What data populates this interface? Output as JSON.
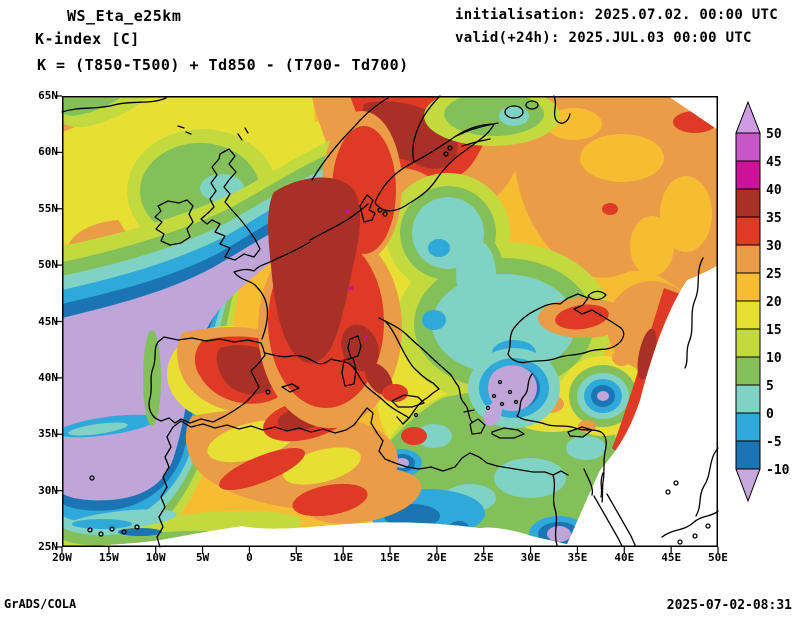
{
  "header": {
    "model": "WS_Eta_e25km",
    "parameter": "K-index [C]",
    "formula": "K = (T850-T500) + Td850 - (T700- Td700)",
    "initialisation": "initialisation: 2025.07.02. 00:00 UTC",
    "valid": "valid(+24h): 2025.JUL.03 00:00 UTC"
  },
  "footer": {
    "credit": "GrADS/COLA",
    "generated": "2025-07-02-08:31"
  },
  "axes": {
    "lat_labels": [
      "65N",
      "60N",
      "55N",
      "50N",
      "45N",
      "40N",
      "35N",
      "30N",
      "25N"
    ],
    "lon_labels": [
      "20W",
      "15W",
      "10W",
      "5W",
      "0",
      "5E",
      "10E",
      "15E",
      "20E",
      "25E",
      "30E",
      "35E",
      "40E",
      "45E",
      "50E"
    ]
  },
  "colorbar": {
    "tick_labels": [
      "50",
      "45",
      "40",
      "35",
      "30",
      "25",
      "20",
      "15",
      "10",
      "5",
      "0",
      "-5",
      "-10"
    ],
    "segment_colors": [
      "#c756c9",
      "#ce1199",
      "#a93026",
      "#de3a26",
      "#eb9c46",
      "#f7bd32",
      "#e8df34",
      "#c3da3f",
      "#84c05a",
      "#7fd2c4",
      "#2fa9da",
      "#1b74b4"
    ],
    "arrow_top_color": "#cf9be2",
    "arrow_bottom_color": "#c6a9dc"
  },
  "palette": {
    "purple": "#bfa5d8",
    "blue": "#1b74b4",
    "cyan": "#2fa9da",
    "teal": "#7fd2c4",
    "green": "#84c05a",
    "ygreen": "#c3da3f",
    "yellow": "#e8df34",
    "amber": "#f7bd32",
    "orange": "#eb9c46",
    "red": "#de3a26",
    "darkred": "#a93026",
    "magenta": "#ce1199"
  },
  "chart_data": {
    "type": "heatmap",
    "title": "K-index [C]",
    "model": "WS_Eta_e25km",
    "units": "C",
    "x_axis": {
      "label": "longitude",
      "range": [
        "20W",
        "50E"
      ],
      "ticks": [
        "20W",
        "15W",
        "10W",
        "5W",
        "0",
        "5E",
        "10E",
        "15E",
        "20E",
        "25E",
        "30E",
        "35E",
        "40E",
        "45E",
        "50E"
      ]
    },
    "y_axis": {
      "label": "latitude",
      "range": [
        "25N",
        "65N"
      ],
      "ticks": [
        "25N",
        "30N",
        "35N",
        "40N",
        "45N",
        "50N",
        "55N",
        "60N",
        "65N"
      ]
    },
    "contour_levels": [
      -10,
      -5,
      0,
      5,
      10,
      15,
      20,
      25,
      30,
      35,
      40,
      45,
      50
    ],
    "legend_position": "right",
    "regions": [
      {
        "area": "NE Atlantic band: Bay of Biscay - English Channel - SW England",
        "value": "< -10"
      },
      {
        "area": "Atlantic west of Iberia",
        "value": "< -10"
      },
      {
        "area": "France / Germany / Alps / N Italy",
        "value": "30 to 40"
      },
      {
        "area": "Central Spain",
        "value": "35 to 40"
      },
      {
        "area": "S Scandinavia / Denmark / Baltic",
        "value": "30 to 40, local 40-45"
      },
      {
        "area": "Ireland / Scotland",
        "value": "5 to 10"
      },
      {
        "area": "Poland / Pannonia / Balkans",
        "value": "0 to 5"
      },
      {
        "area": "Aegean Sea bullseye",
        "value": "< -10"
      },
      {
        "area": "Bullseye near 35E 38N",
        "value": "< -10"
      },
      {
        "area": "NW Africa (Algeria blobs)",
        "value": "30 to 40"
      },
      {
        "area": "E Mediterranean / Egypt / Levant",
        "value": "0 to 10"
      },
      {
        "area": "Crimea / NE domain edge streak",
        "value": "30 to 35"
      },
      {
        "area": "Eastern Europe / Russia plains",
        "value": "20 to 30"
      }
    ]
  }
}
